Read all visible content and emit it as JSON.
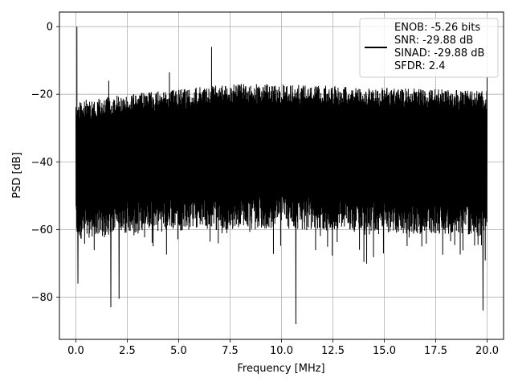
{
  "chart_data": {
    "type": "line",
    "title": "",
    "xlabel": "Frequency [MHz]",
    "ylabel": "PSD [dB]",
    "xlim": [
      -0.8,
      20.8
    ],
    "ylim": [
      -92.5,
      4.3
    ],
    "xticks": [
      0.0,
      2.5,
      5.0,
      7.5,
      10.0,
      12.5,
      15.0,
      17.5,
      20.0
    ],
    "xtick_labels": [
      "0.0",
      "2.5",
      "5.0",
      "7.5",
      "10.0",
      "12.5",
      "15.0",
      "17.5",
      "20.0"
    ],
    "yticks": [
      0,
      -20,
      -40,
      -60,
      -80
    ],
    "ytick_labels": [
      "0",
      "−20",
      "−40",
      "−60",
      "−80"
    ],
    "grid": true,
    "legend_position": "top-right",
    "line_color": "#000000",
    "series": [
      {
        "name": "ENOB: -5.26 bits\nSNR: -29.88 dB\nSINAD: -29.88 dB\nSFDR: 2.4",
        "x_range": [
          0.0,
          20.0
        ],
        "upper_envelope": [
          [
            0.0,
            -22
          ],
          [
            2.5,
            -20
          ],
          [
            5.0,
            -18.5
          ],
          [
            7.5,
            -17
          ],
          [
            10.0,
            -17
          ],
          [
            12.5,
            -17.5
          ],
          [
            15.0,
            -18
          ],
          [
            17.5,
            -18.5
          ],
          [
            20.0,
            -19
          ]
        ],
        "lower_envelope": [
          [
            0.0,
            -63
          ],
          [
            2.5,
            -61
          ],
          [
            5.0,
            -60.5
          ],
          [
            7.5,
            -60
          ],
          [
            10.0,
            -60
          ],
          [
            12.5,
            -60.5
          ],
          [
            15.0,
            -61
          ],
          [
            17.5,
            -61.5
          ],
          [
            20.0,
            -62
          ]
        ],
        "peaks": [
          [
            0.05,
            0
          ],
          [
            1.6,
            -16
          ],
          [
            4.55,
            -13.5
          ],
          [
            6.6,
            -6
          ],
          [
            20.0,
            -15
          ]
        ],
        "dips": [
          [
            0.1,
            -76
          ],
          [
            1.7,
            -83
          ],
          [
            2.1,
            -80.5
          ],
          [
            10.7,
            -88
          ],
          [
            19.8,
            -84
          ]
        ]
      }
    ],
    "legend_lines": [
      "ENOB: -5.26 bits",
      "SNR: -29.88 dB",
      "SINAD: -29.88 dB",
      "SFDR: 2.4"
    ]
  }
}
